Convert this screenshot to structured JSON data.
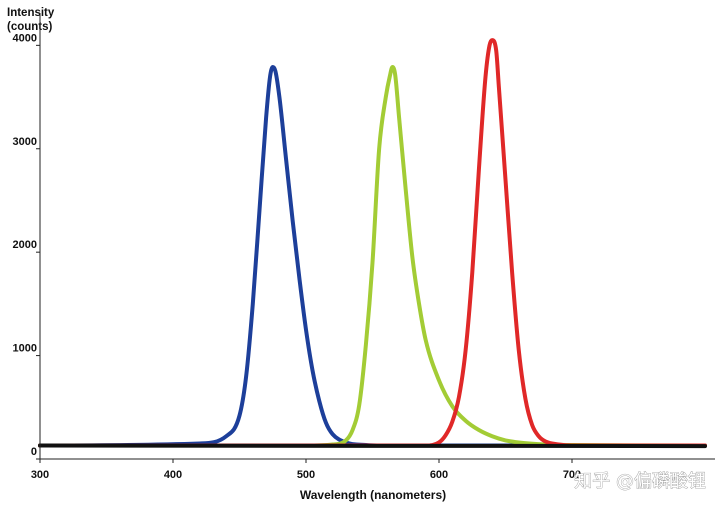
{
  "chart_data": {
    "type": "line",
    "ylabel": [
      "Intensity",
      "(counts)"
    ],
    "xlabel": "Wavelength (nanometers)",
    "xlim": [
      300,
      800
    ],
    "ylim": [
      0,
      4100
    ],
    "xticks": [
      300,
      400,
      500,
      600,
      700
    ],
    "yticks": [
      0,
      1000,
      2000,
      3000,
      4000
    ],
    "grid": false,
    "legend": "none",
    "series": [
      {
        "color": "#1d3f9a",
        "x": [
          300,
          420,
          440,
          450,
          455,
          460,
          465,
          470,
          473,
          475,
          477,
          480,
          485,
          490,
          495,
          500,
          505,
          510,
          515,
          520,
          530,
          545,
          560,
          800
        ],
        "y": [
          130,
          150,
          220,
          420,
          800,
          1500,
          2400,
          3300,
          3700,
          3790,
          3750,
          3500,
          2900,
          2300,
          1750,
          1250,
          850,
          560,
          350,
          240,
          160,
          135,
          130,
          130
        ]
      },
      {
        "color": "#a3cc35",
        "x": [
          300,
          500,
          520,
          530,
          535,
          540,
          545,
          550,
          555,
          560,
          563,
          565,
          567,
          570,
          575,
          580,
          585,
          590,
          600,
          610,
          620,
          630,
          640,
          650,
          660,
          680,
          700,
          800
        ],
        "y": [
          130,
          130,
          140,
          180,
          280,
          520,
          1100,
          1900,
          3000,
          3500,
          3700,
          3790,
          3720,
          3300,
          2600,
          1950,
          1500,
          1150,
          760,
          510,
          370,
          280,
          220,
          180,
          160,
          140,
          135,
          130
        ]
      },
      {
        "color": "#e02828",
        "x": [
          300,
          590,
          600,
          605,
          610,
          615,
          620,
          625,
          630,
          635,
          638,
          640,
          643,
          645,
          650,
          655,
          660,
          665,
          670,
          675,
          680,
          690,
          700,
          800
        ],
        "y": [
          130,
          130,
          160,
          230,
          360,
          600,
          1050,
          1800,
          2800,
          3700,
          4000,
          4050,
          3950,
          3600,
          2700,
          1800,
          1050,
          580,
          330,
          220,
          170,
          140,
          130,
          130
        ]
      },
      {
        "color": "#111111",
        "x": [
          300,
          800
        ],
        "y": [
          130,
          125
        ]
      }
    ]
  },
  "watermark": "知乎 @偏磷酸锂"
}
